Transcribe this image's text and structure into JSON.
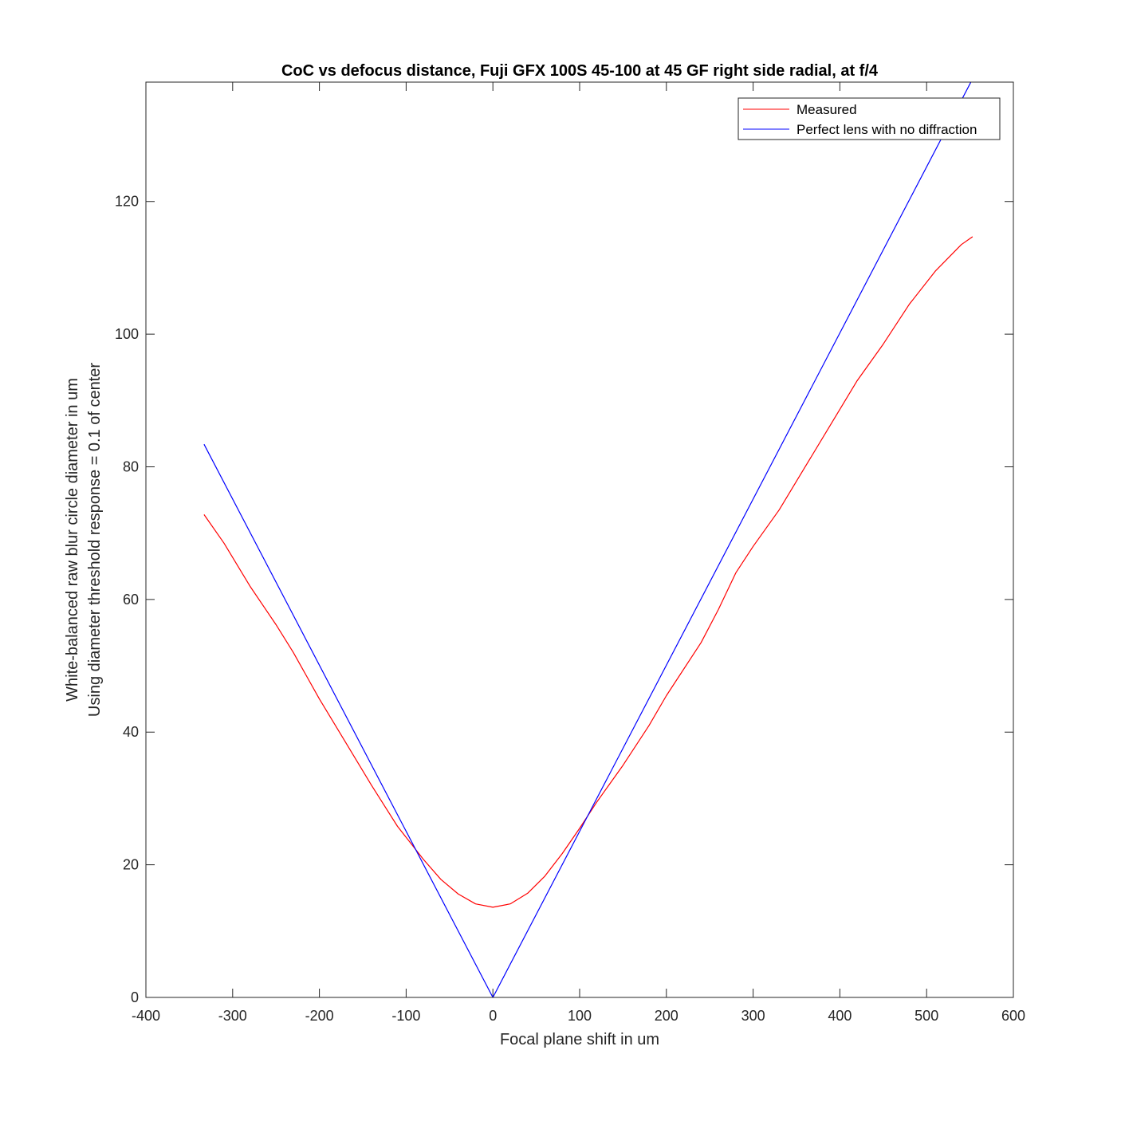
{
  "chart_data": {
    "type": "line",
    "title": "CoC vs defocus distance, Fuji GFX 100S 45-100 at 45 GF right side radial, at f/4",
    "xlabel": "Focal plane shift in um",
    "ylabel": [
      "White-balanced raw blur circle diameter in um",
      "Using diameter threshold response = 0.1 of center"
    ],
    "xlim": [
      -400,
      600
    ],
    "ylim": [
      0,
      138
    ],
    "xticks": [
      -400,
      -300,
      -200,
      -100,
      0,
      100,
      200,
      300,
      400,
      500,
      600
    ],
    "yticks": [
      0,
      20,
      40,
      60,
      80,
      100,
      120
    ],
    "legend_position": "top-right",
    "series": [
      {
        "name": "Measured",
        "color": "#ff0000",
        "x": [
          -333,
          -310,
          -280,
          -250,
          -230,
          -200,
          -170,
          -140,
          -110,
          -80,
          -60,
          -40,
          -20,
          0,
          20,
          40,
          60,
          80,
          100,
          120,
          150,
          180,
          200,
          240,
          260,
          280,
          300,
          330,
          360,
          390,
          420,
          450,
          480,
          510,
          540,
          553
        ],
        "y": [
          72.8,
          68.5,
          62.0,
          56.2,
          52.0,
          45.0,
          38.5,
          32.0,
          25.8,
          20.8,
          17.8,
          15.6,
          14.1,
          13.6,
          14.1,
          15.7,
          18.3,
          21.7,
          25.5,
          29.5,
          35.0,
          41.0,
          45.5,
          53.5,
          58.5,
          64.0,
          68.0,
          73.5,
          80.0,
          86.5,
          93.0,
          98.5,
          104.5,
          109.5,
          113.5,
          114.7
        ]
      },
      {
        "name": "Perfect lens with no diffraction",
        "color": "#0000ff",
        "x": [
          -333,
          0,
          555
        ],
        "y": [
          83.4,
          0,
          139.0
        ]
      }
    ]
  }
}
